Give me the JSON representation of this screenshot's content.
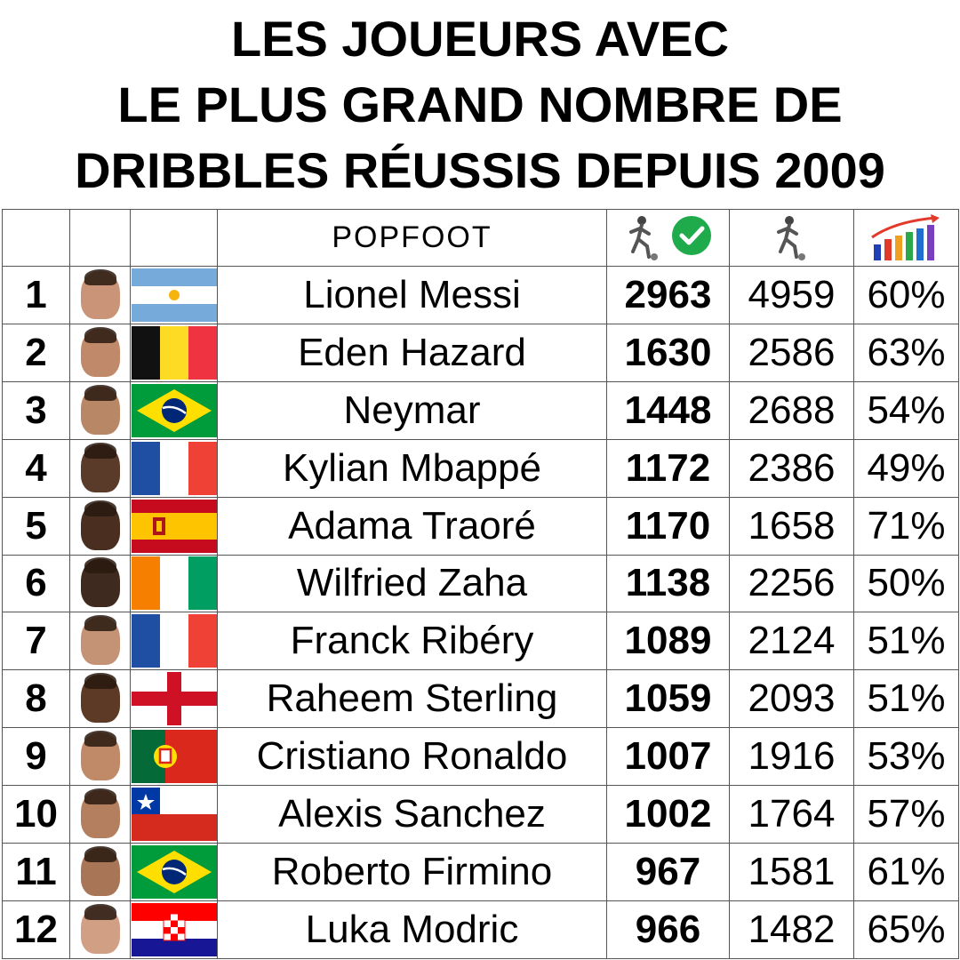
{
  "title": {
    "line1": "LES JOUEURS AVEC",
    "line2": "LE PLUS GRAND NOMBRE DE",
    "line3": "DRIBBLES RÉUSSIS DEPUIS 2009"
  },
  "header": {
    "logo": "POPFOOT",
    "col_success_icon": "player-dribble-check-icon",
    "col_attempts_icon": "player-dribble-icon",
    "col_ratio_icon": "bar-chart-arrow-icon"
  },
  "rows": [
    {
      "rank": "1",
      "name": "Lionel Messi",
      "success": "2963",
      "attempts": "4959",
      "pct": "60%",
      "flag": "argentina",
      "skin": "#c99477"
    },
    {
      "rank": "2",
      "name": "Eden Hazard",
      "success": "1630",
      "attempts": "2586",
      "pct": "63%",
      "flag": "belgium",
      "skin": "#c08a6a"
    },
    {
      "rank": "3",
      "name": "Neymar",
      "success": "1448",
      "attempts": "2688",
      "pct": "54%",
      "flag": "brazil",
      "skin": "#b88766"
    },
    {
      "rank": "4",
      "name": "Kylian Mbappé",
      "success": "1172",
      "attempts": "2386",
      "pct": "49%",
      "flag": "france",
      "skin": "#5a3a28"
    },
    {
      "rank": "5",
      "name": "Adama Traoré",
      "success": "1170",
      "attempts": "1658",
      "pct": "71%",
      "flag": "spain",
      "skin": "#4a2e20"
    },
    {
      "rank": "6",
      "name": "Wilfried Zaha",
      "success": "1138",
      "attempts": "2256",
      "pct": "50%",
      "flag": "ivory-coast",
      "skin": "#3e2a1e"
    },
    {
      "rank": "7",
      "name": "Franck Ribéry",
      "success": "1089",
      "attempts": "2124",
      "pct": "51%",
      "flag": "france",
      "skin": "#c49274"
    },
    {
      "rank": "8",
      "name": "Raheem Sterling",
      "success": "1059",
      "attempts": "2093",
      "pct": "51%",
      "flag": "england",
      "skin": "#5c3a26"
    },
    {
      "rank": "9",
      "name": "Cristiano Ronaldo",
      "success": "1007",
      "attempts": "1916",
      "pct": "53%",
      "flag": "portugal",
      "skin": "#c08a68"
    },
    {
      "rank": "10",
      "name": "Alexis Sanchez",
      "success": "1002",
      "attempts": "1764",
      "pct": "57%",
      "flag": "chile",
      "skin": "#b47f5e"
    },
    {
      "rank": "11",
      "name": "Roberto Firmino",
      "success": "967",
      "attempts": "1581",
      "pct": "61%",
      "flag": "brazil",
      "skin": "#a87656"
    },
    {
      "rank": "12",
      "name": "Luka Modric",
      "success": "966",
      "attempts": "1482",
      "pct": "65%",
      "flag": "croatia",
      "skin": "#d1a084"
    }
  ],
  "colors": {
    "check_green": "#1faa4b",
    "flag_argentina_blue": "#75aadb",
    "flag_france_blue": "#1f4fa3",
    "flag_france_red": "#ef4135"
  }
}
